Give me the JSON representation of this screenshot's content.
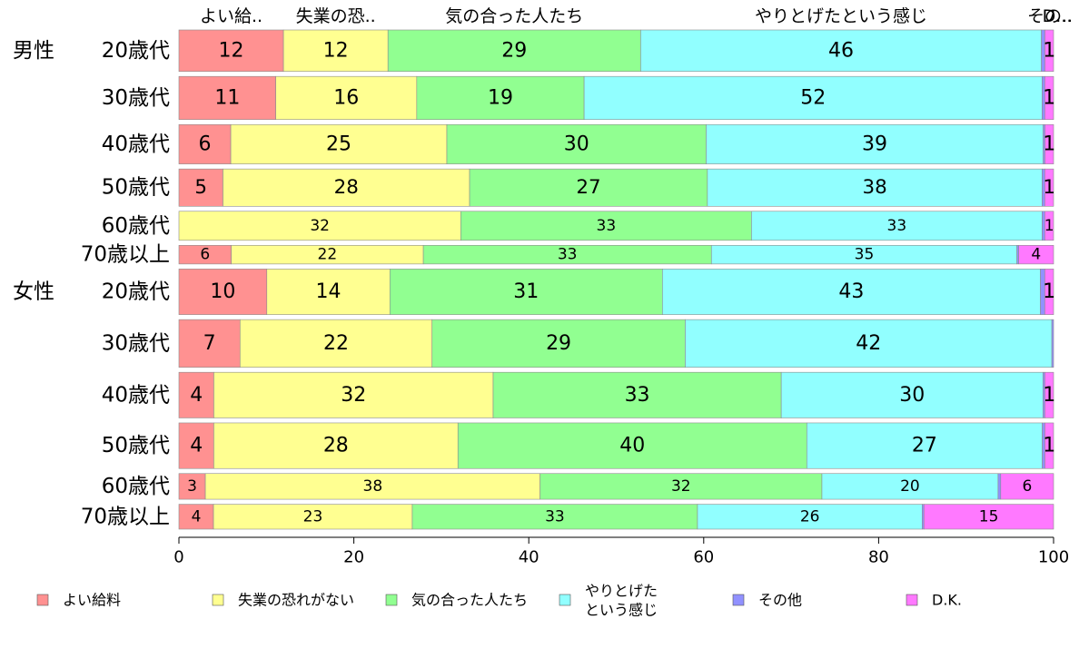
{
  "chart_data": {
    "type": "bar",
    "orientation": "horizontal",
    "stacked": true,
    "title": "",
    "xlabel": "",
    "ylabel": "",
    "xlim": [
      0,
      100
    ],
    "x_ticks": [
      "0",
      "20",
      "40",
      "60",
      "80",
      "100"
    ],
    "grid": false,
    "legend_position": "bottom",
    "top_labels": [
      "よい給..",
      "失業の恐..",
      "気の合った人たち",
      "やりとげたという感じ",
      "その..",
      "D..."
    ],
    "groups": [
      {
        "label": "男性",
        "rows": [
          0,
          5
        ]
      },
      {
        "label": "女性",
        "rows": [
          6,
          11
        ]
      }
    ],
    "categories": [
      "20歳代",
      "30歳代",
      "40歳代",
      "50歳代",
      "60歳代",
      "70歳以上",
      "20歳代",
      "30歳代",
      "40歳代",
      "50歳代",
      "60歳代",
      "70歳以上"
    ],
    "row_weights": [
      1.0,
      1.04,
      0.95,
      0.9,
      0.7,
      0.45,
      1.1,
      1.15,
      1.1,
      1.1,
      0.62,
      0.6
    ],
    "series": [
      {
        "name": "よい給料",
        "color": "#ff9191",
        "values": [
          12,
          11,
          6,
          5,
          0,
          6,
          10,
          7,
          4,
          4,
          3,
          4
        ]
      },
      {
        "name": "失業の恐れがない",
        "color": "#ffff91",
        "values": [
          12,
          16,
          25,
          28,
          32,
          22,
          14,
          22,
          32,
          28,
          38,
          23
        ]
      },
      {
        "name": "気の合った人たち",
        "color": "#91ff91",
        "values": [
          29,
          19,
          30,
          27,
          33,
          33,
          31,
          29,
          33,
          40,
          32,
          33
        ]
      },
      {
        "name": "やりとげたという感じ",
        "color": "#91ffff",
        "values": [
          46,
          52,
          39,
          38,
          33,
          35,
          43,
          42,
          30,
          27,
          20,
          26
        ]
      },
      {
        "name": "その他",
        "color": "#9191ff",
        "values": [
          0.4,
          0.3,
          0.2,
          0.3,
          0.3,
          0.2,
          0.5,
          0.2,
          0.2,
          0.3,
          0.3,
          0.2
        ]
      },
      {
        "name": "D.K.",
        "color": "#ff79ff",
        "values": [
          1,
          1,
          1,
          1,
          1,
          4,
          1,
          0,
          1,
          1,
          6,
          15
        ]
      }
    ],
    "data_labels": [
      [
        "12",
        "12",
        "29",
        "46",
        "",
        "1"
      ],
      [
        "11",
        "16",
        "19",
        "52",
        "",
        "1"
      ],
      [
        "6",
        "25",
        "30",
        "39",
        "",
        "1"
      ],
      [
        "5",
        "28",
        "27",
        "38",
        "",
        "1"
      ],
      [
        "",
        "32",
        "33",
        "33",
        "",
        "1"
      ],
      [
        "6",
        "22",
        "33",
        "35",
        "",
        "4"
      ],
      [
        "10",
        "14",
        "31",
        "43",
        "",
        "1"
      ],
      [
        "7",
        "22",
        "29",
        "42",
        "",
        ""
      ],
      [
        "4",
        "32",
        "33",
        "30",
        "",
        "1"
      ],
      [
        "4",
        "28",
        "40",
        "27",
        "",
        "1"
      ],
      [
        "3",
        "38",
        "32",
        "20",
        "",
        "6"
      ],
      [
        "4",
        "23",
        "33",
        "26",
        "",
        "15"
      ]
    ],
    "legend": [
      {
        "lines": [
          "よい給料"
        ],
        "color": "#ff9191"
      },
      {
        "lines": [
          "失業の恐れがない"
        ],
        "color": "#ffff91"
      },
      {
        "lines": [
          "気の合った人たち"
        ],
        "color": "#91ff91"
      },
      {
        "lines": [
          "やりとげた",
          "という感じ"
        ],
        "color": "#91ffff"
      },
      {
        "lines": [
          "その他"
        ],
        "color": "#9191ff"
      },
      {
        "lines": [
          "D.K."
        ],
        "color": "#ff79ff"
      }
    ]
  }
}
